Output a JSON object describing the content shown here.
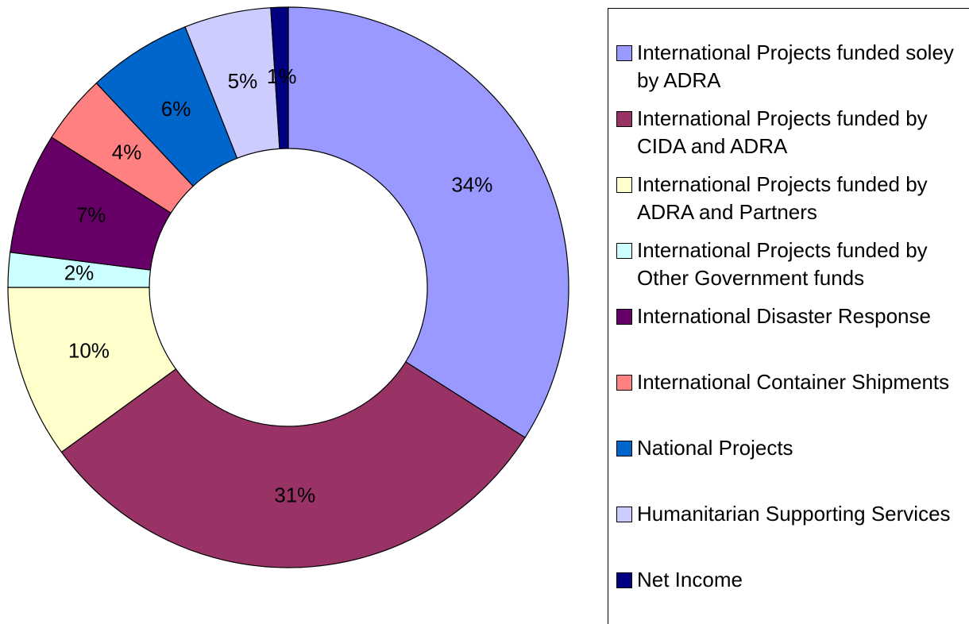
{
  "chart_data": {
    "type": "donut",
    "categories": [
      "International Projects funded soley by ADRA",
      "International Projects funded by CIDA and ADRA",
      "International Projects funded by ADRA and Partners",
      "International Projects funded by Other Government funds",
      "International Disaster Response",
      "International Container Shipments",
      "National Projects",
      "Humanitarian Supporting Services",
      "Net Income"
    ],
    "values": [
      34,
      31,
      10,
      2,
      7,
      4,
      6,
      5,
      1
    ],
    "value_labels": [
      "34%",
      "31%",
      "10%",
      "2%",
      "7%",
      "4%",
      "6%",
      "5%",
      "1%"
    ],
    "colors": [
      "#9999ff",
      "#993366",
      "#ffffcc",
      "#ccffff",
      "#660066",
      "#ff8080",
      "#0066cc",
      "#ccccff",
      "#000080"
    ]
  }
}
